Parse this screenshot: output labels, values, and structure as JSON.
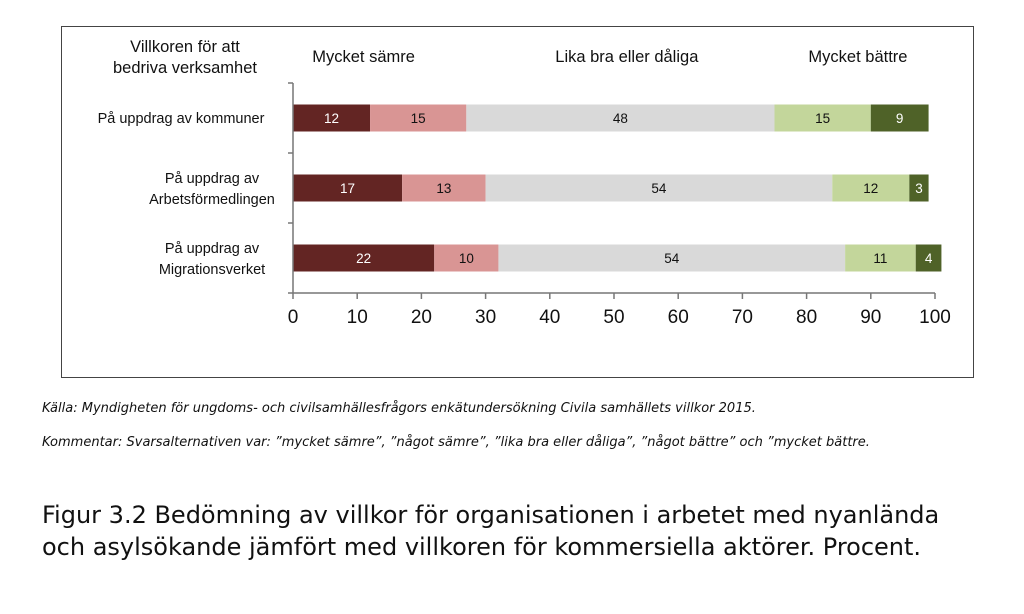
{
  "chart_data": {
    "type": "stacked-bar-horizontal",
    "y_axis_title": "Villkoren för att bedriva verksamhet",
    "column_headers": [
      "Mycket sämre",
      "Lika bra eller dåliga",
      "Mycket bättre"
    ],
    "categories": [
      "På uppdrag av kommuner",
      "På uppdrag av Arbetsförmedlingen",
      "På uppdrag av Migrationsverket"
    ],
    "category_lines": [
      [
        "På uppdrag av kommuner"
      ],
      [
        "På uppdrag av",
        "Arbetsförmedlingen"
      ],
      [
        "På uppdrag av",
        "Migrationsverket"
      ]
    ],
    "series": [
      {
        "name": "mycket sämre",
        "color": "#632523",
        "label_color": "#ffffff",
        "values": [
          12,
          17,
          22
        ]
      },
      {
        "name": "något sämre",
        "color": "#d99594",
        "label_color": "#111111",
        "values": [
          15,
          13,
          10
        ]
      },
      {
        "name": "lika bra eller dåliga",
        "color": "#d9d9d9",
        "label_color": "#111111",
        "values": [
          48,
          54,
          54
        ]
      },
      {
        "name": "något bättre",
        "color": "#c3d69b",
        "label_color": "#111111",
        "values": [
          15,
          12,
          11
        ]
      },
      {
        "name": "mycket bättre",
        "color": "#4f6228",
        "label_color": "#ffffff",
        "values": [
          9,
          3,
          4
        ]
      }
    ],
    "xlim": [
      0,
      100
    ],
    "xticks": [
      0,
      10,
      20,
      30,
      40,
      50,
      60,
      70,
      80,
      90,
      100
    ],
    "grid": false
  },
  "notes": {
    "source": "Källa: Myndigheten för ungdoms- och civilsamhällesfrågors enkätundersökning Civila samhällets villkor 2015.",
    "comment": "Kommentar: Svarsalternativen var: ”mycket sämre”, ”något sämre”, ”lika bra eller dåliga”, ”något bättre” och ”mycket bättre."
  },
  "caption": "Figur 3.2 Bedömning av villkor för organisationen i arbetet med nyanlända och asylsökande jämfört med villkoren för kommersiella aktörer. Procent."
}
